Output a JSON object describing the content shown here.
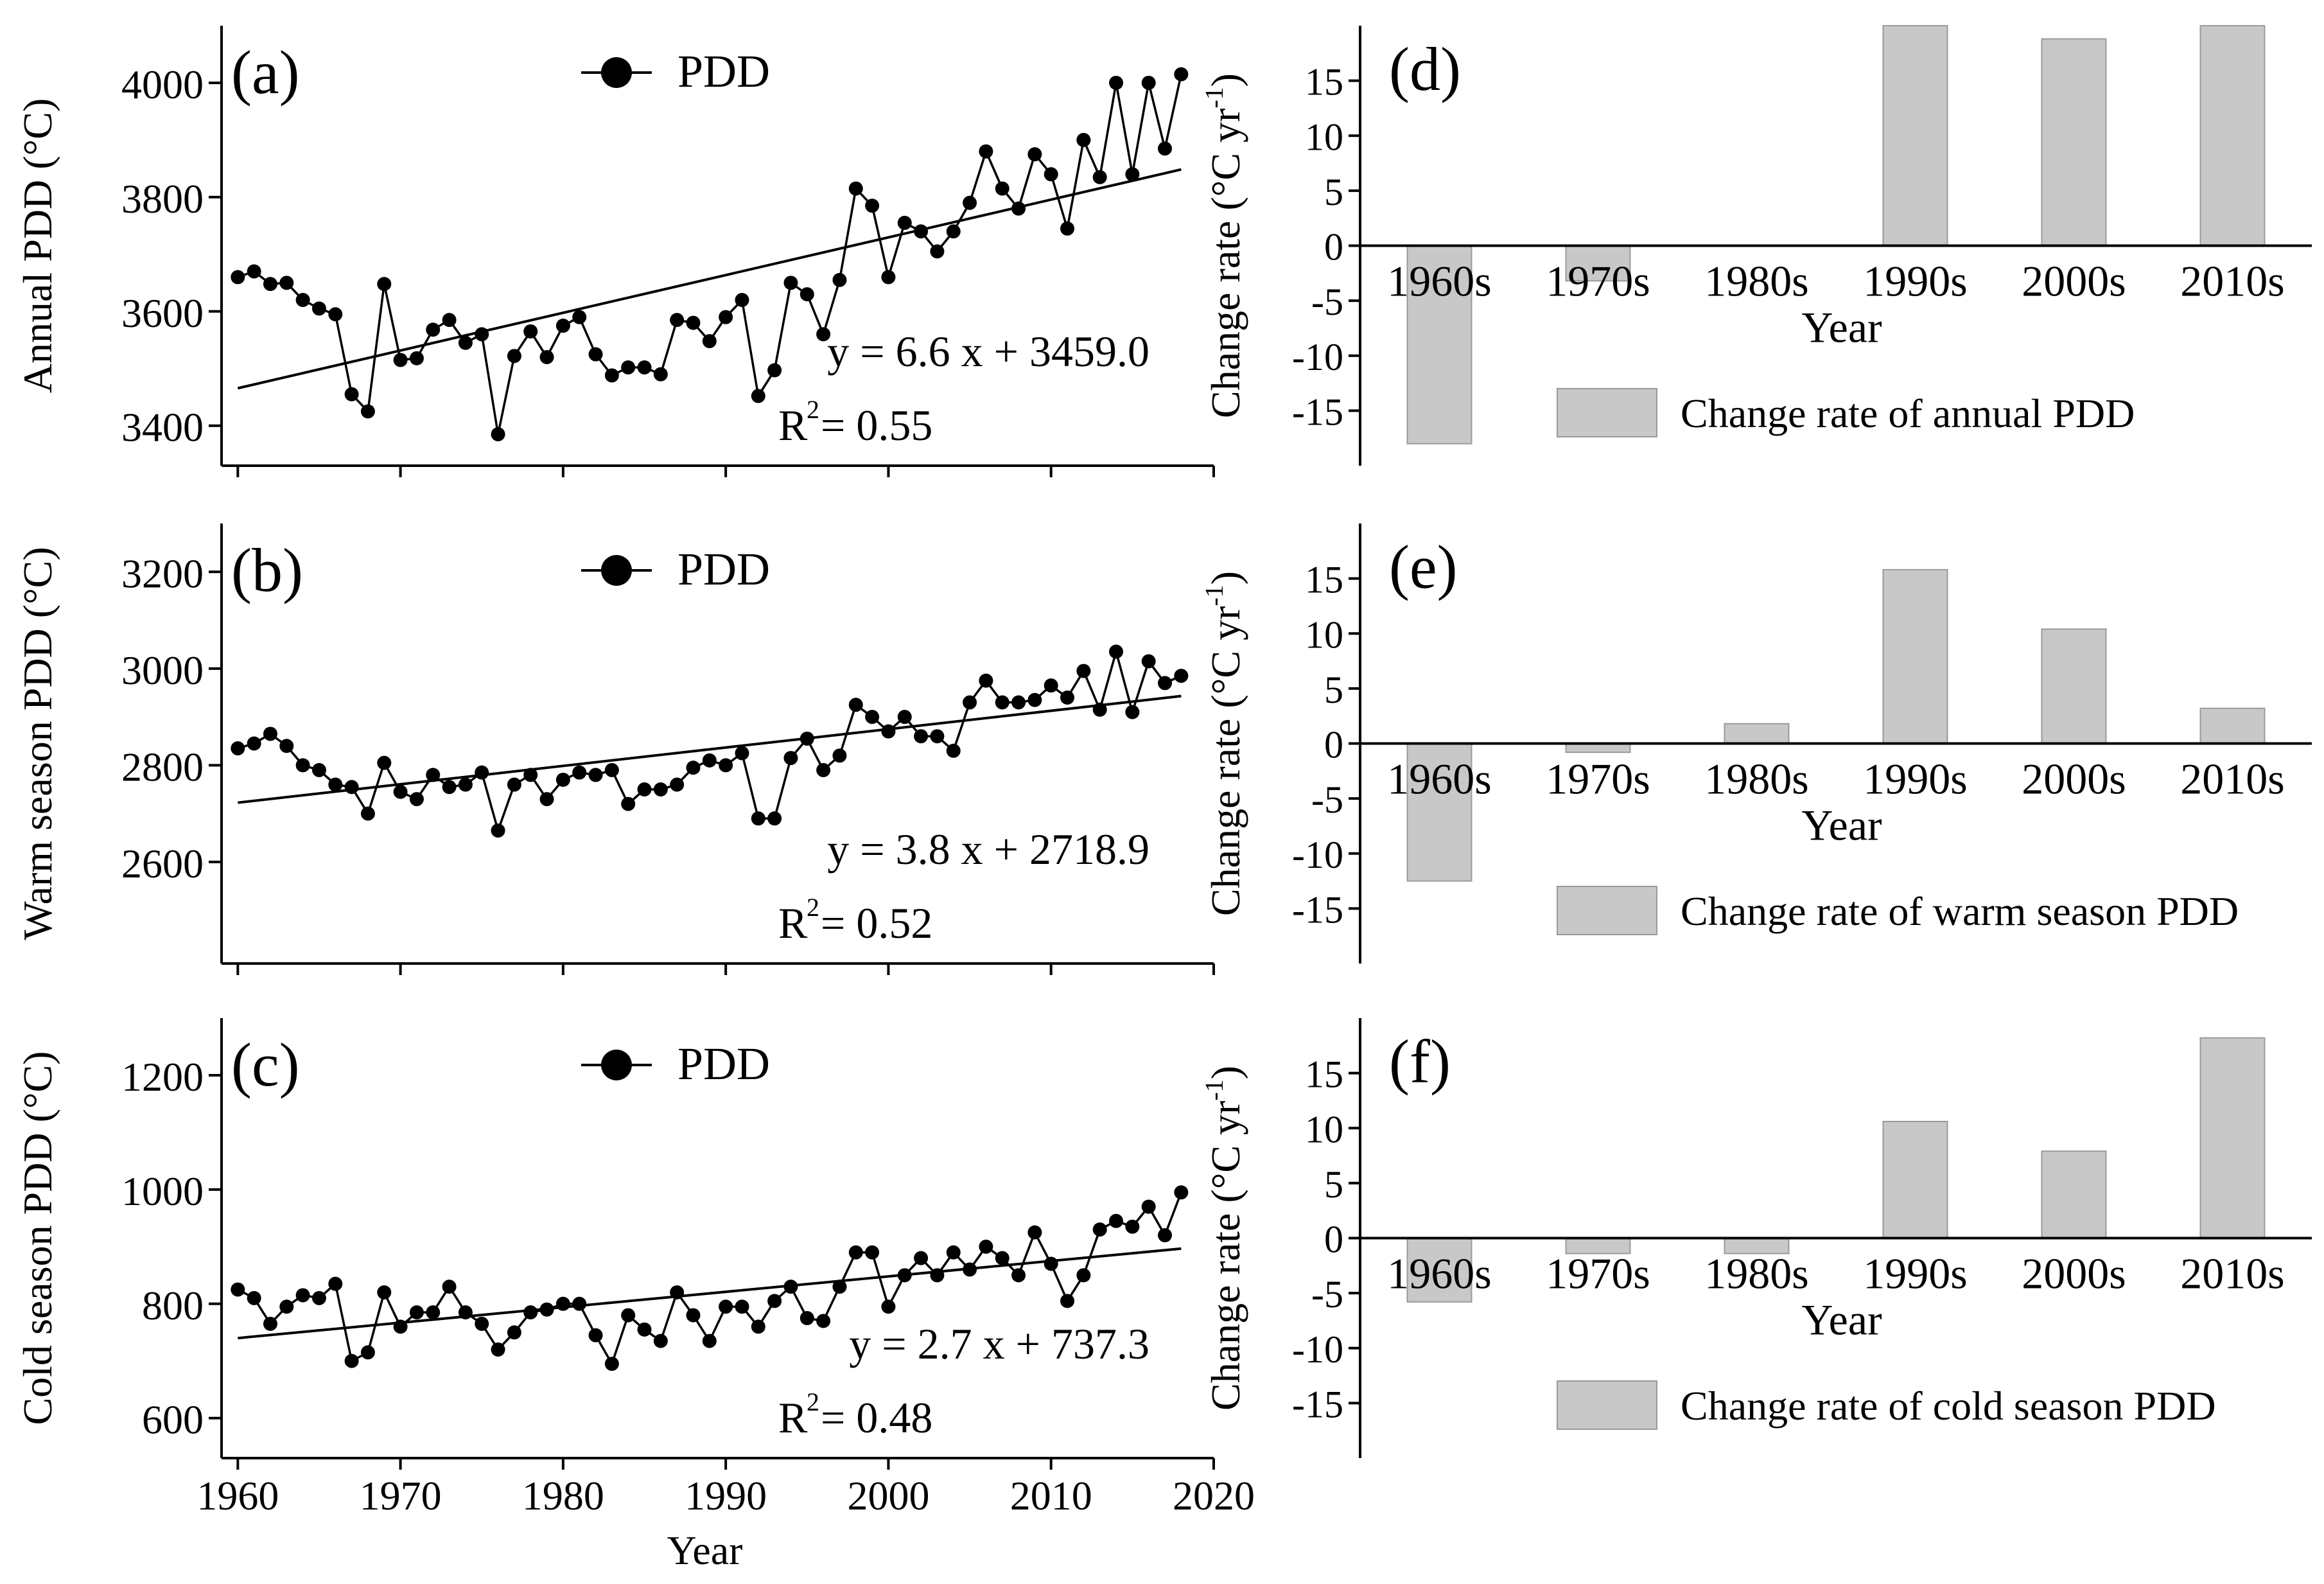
{
  "colors": {
    "marker": "#000000",
    "line": "#000000",
    "bar_fill": "#c8c8c8",
    "bar_stroke": "#9a9a9a",
    "axis": "#000000",
    "background": "#ffffff"
  },
  "chart_data": [
    {
      "id": "a",
      "type": "line",
      "panel_label": "(a)",
      "ylabel": "Annual PDD (°C)",
      "xlabel": "",
      "xlim": [
        1959,
        2020
      ],
      "ylim": [
        3330,
        4100
      ],
      "yticks": [
        3400,
        3600,
        3800,
        4000
      ],
      "xticks": [
        1960,
        1970,
        1980,
        1990,
        2000,
        2010,
        2020
      ],
      "show_xtick_labels": false,
      "legend": "PDD",
      "legend_position": "top-center",
      "marker": "circle",
      "trend": {
        "slope": 6.6,
        "intercept": 3459.0,
        "x_from": 1960,
        "x_to": 2018
      },
      "equation": "y = 6.6 x + 3459.0",
      "r2_label": "R",
      "r2_exp": "2",
      "r2_value": " = 0.55",
      "series": [
        {
          "name": "PDD",
          "x": [
            1960,
            1961,
            1962,
            1963,
            1964,
            1965,
            1966,
            1967,
            1968,
            1969,
            1970,
            1971,
            1972,
            1973,
            1974,
            1975,
            1976,
            1977,
            1978,
            1979,
            1980,
            1981,
            1982,
            1983,
            1984,
            1985,
            1986,
            1987,
            1988,
            1989,
            1990,
            1991,
            1992,
            1993,
            1994,
            1995,
            1996,
            1997,
            1998,
            1999,
            2000,
            2001,
            2002,
            2003,
            2004,
            2005,
            2006,
            2007,
            2008,
            2009,
            2010,
            2011,
            2012,
            2013,
            2014,
            2015,
            2016,
            2017,
            2018
          ],
          "values": [
            3660,
            3670,
            3648,
            3650,
            3620,
            3605,
            3595,
            3455,
            3425,
            3648,
            3515,
            3518,
            3568,
            3585,
            3545,
            3560,
            3385,
            3522,
            3565,
            3520,
            3575,
            3590,
            3525,
            3488,
            3502,
            3502,
            3490,
            3585,
            3580,
            3548,
            3590,
            3620,
            3452,
            3497,
            3650,
            3630,
            3560,
            3655,
            3815,
            3785,
            3660,
            3755,
            3740,
            3705,
            3740,
            3790,
            3880,
            3815,
            3780,
            3875,
            3840,
            3745,
            3900,
            3835,
            4000,
            3840,
            4000,
            3885,
            4015
          ]
        }
      ]
    },
    {
      "id": "b",
      "type": "line",
      "panel_label": "(b)",
      "ylabel": "Warm season PDD (°C)",
      "xlabel": "",
      "xlim": [
        1959,
        2020
      ],
      "ylim": [
        2390,
        3300
      ],
      "yticks": [
        2600,
        2800,
        3000,
        3200
      ],
      "xticks": [
        1960,
        1970,
        1980,
        1990,
        2000,
        2010,
        2020
      ],
      "show_xtick_labels": false,
      "legend": "PDD",
      "legend_position": "top-center",
      "marker": "circle",
      "trend": {
        "slope": 3.8,
        "intercept": 2718.9,
        "x_from": 1960,
        "x_to": 2018
      },
      "equation": "y = 3.8 x + 2718.9",
      "r2_label": "R",
      "r2_exp": "2",
      "r2_value": " = 0.52",
      "series": [
        {
          "name": "PDD",
          "x": [
            1960,
            1961,
            1962,
            1963,
            1964,
            1965,
            1966,
            1967,
            1968,
            1969,
            1970,
            1971,
            1972,
            1973,
            1974,
            1975,
            1976,
            1977,
            1978,
            1979,
            1980,
            1981,
            1982,
            1983,
            1984,
            1985,
            1986,
            1987,
            1988,
            1989,
            1990,
            1991,
            1992,
            1993,
            1994,
            1995,
            1996,
            1997,
            1998,
            1999,
            2000,
            2001,
            2002,
            2003,
            2004,
            2005,
            2006,
            2007,
            2008,
            2009,
            2010,
            2011,
            2012,
            2013,
            2014,
            2015,
            2016,
            2017,
            2018
          ],
          "values": [
            2835,
            2845,
            2865,
            2840,
            2800,
            2790,
            2760,
            2755,
            2700,
            2805,
            2745,
            2730,
            2780,
            2755,
            2760,
            2785,
            2665,
            2760,
            2780,
            2730,
            2770,
            2785,
            2780,
            2790,
            2720,
            2750,
            2750,
            2760,
            2795,
            2810,
            2800,
            2825,
            2690,
            2690,
            2815,
            2855,
            2790,
            2820,
            2925,
            2900,
            2870,
            2900,
            2860,
            2860,
            2830,
            2930,
            2975,
            2930,
            2930,
            2935,
            2965,
            2940,
            2995,
            2915,
            3035,
            2910,
            3015,
            2970,
            2985
          ]
        }
      ]
    },
    {
      "id": "c",
      "type": "line",
      "panel_label": "(c)",
      "ylabel": "Cold season PDD (°C)",
      "xlabel": "Year",
      "xlim": [
        1959,
        2020
      ],
      "ylim": [
        530,
        1300
      ],
      "yticks": [
        600,
        800,
        1000,
        1200
      ],
      "xticks": [
        1960,
        1970,
        1980,
        1990,
        2000,
        2010,
        2020
      ],
      "show_xtick_labels": true,
      "legend": "PDD",
      "legend_position": "top-center",
      "marker": "circle",
      "trend": {
        "slope": 2.7,
        "intercept": 737.3,
        "x_from": 1960,
        "x_to": 2018
      },
      "equation": "y = 2.7 x + 737.3",
      "r2_label": "R",
      "r2_exp": "2",
      "r2_value": " = 0.48",
      "series": [
        {
          "name": "PDD",
          "x": [
            1960,
            1961,
            1962,
            1963,
            1964,
            1965,
            1966,
            1967,
            1968,
            1969,
            1970,
            1971,
            1972,
            1973,
            1974,
            1975,
            1976,
            1977,
            1978,
            1979,
            1980,
            1981,
            1982,
            1983,
            1984,
            1985,
            1986,
            1987,
            1988,
            1989,
            1990,
            1991,
            1992,
            1993,
            1994,
            1995,
            1996,
            1997,
            1998,
            1999,
            2000,
            2001,
            2002,
            2003,
            2004,
            2005,
            2006,
            2007,
            2008,
            2009,
            2010,
            2011,
            2012,
            2013,
            2014,
            2015,
            2016,
            2017,
            2018
          ],
          "values": [
            825,
            810,
            765,
            795,
            815,
            810,
            835,
            700,
            715,
            820,
            760,
            785,
            785,
            830,
            785,
            765,
            720,
            750,
            785,
            790,
            800,
            800,
            745,
            695,
            780,
            755,
            735,
            820,
            780,
            735,
            795,
            795,
            760,
            805,
            830,
            775,
            770,
            830,
            890,
            890,
            795,
            850,
            880,
            850,
            890,
            860,
            900,
            880,
            850,
            925,
            870,
            805,
            850,
            930,
            945,
            935,
            970,
            920,
            995
          ]
        }
      ]
    },
    {
      "id": "d",
      "type": "bar",
      "panel_label": "(d)",
      "ylabel": "Change rate (°C yr",
      "ylabel_exp": "-1",
      "ylabel_close": ")",
      "xlabel": "Year",
      "ylim": [
        -20,
        20
      ],
      "yticks": [
        -15,
        -10,
        -5,
        0,
        5,
        10,
        15
      ],
      "categories": [
        "1960s",
        "1970s",
        "1980s",
        "1990s",
        "2000s",
        "2010s"
      ],
      "legend": "Change rate of annual PDD",
      "legend_position": "bottom-center",
      "series": [
        {
          "name": "Change rate of annual PDD",
          "values": [
            -18.0,
            -3.2,
            0.0,
            20.0,
            18.8,
            20.0
          ]
        }
      ]
    },
    {
      "id": "e",
      "type": "bar",
      "panel_label": "(e)",
      "ylabel": "Change rate (°C yr",
      "ylabel_exp": "-1",
      "ylabel_close": ")",
      "xlabel": "Year",
      "ylim": [
        -20,
        20
      ],
      "yticks": [
        -15,
        -10,
        -5,
        0,
        5,
        10,
        15
      ],
      "categories": [
        "1960s",
        "1970s",
        "1980s",
        "1990s",
        "2000s",
        "2010s"
      ],
      "legend": "Change rate of warm season PDD",
      "legend_position": "bottom-center",
      "series": [
        {
          "name": "Change rate of warm season PDD",
          "values": [
            -12.5,
            -0.8,
            1.8,
            15.8,
            10.4,
            3.2
          ]
        }
      ]
    },
    {
      "id": "f",
      "type": "bar",
      "panel_label": "(f)",
      "ylabel": "Change rate (°C yr",
      "ylabel_exp": "-1",
      "ylabel_close": ")",
      "xlabel": "Year",
      "ylim": [
        -20,
        20
      ],
      "yticks": [
        -15,
        -10,
        -5,
        0,
        5,
        10,
        15
      ],
      "categories": [
        "1960s",
        "1970s",
        "1980s",
        "1990s",
        "2000s",
        "2010s"
      ],
      "legend": "Change rate of cold season PDD",
      "legend_position": "bottom-center",
      "series": [
        {
          "name": "Change rate of cold season PDD",
          "values": [
            -5.8,
            -1.4,
            -1.4,
            10.6,
            7.9,
            18.2
          ]
        }
      ]
    }
  ]
}
